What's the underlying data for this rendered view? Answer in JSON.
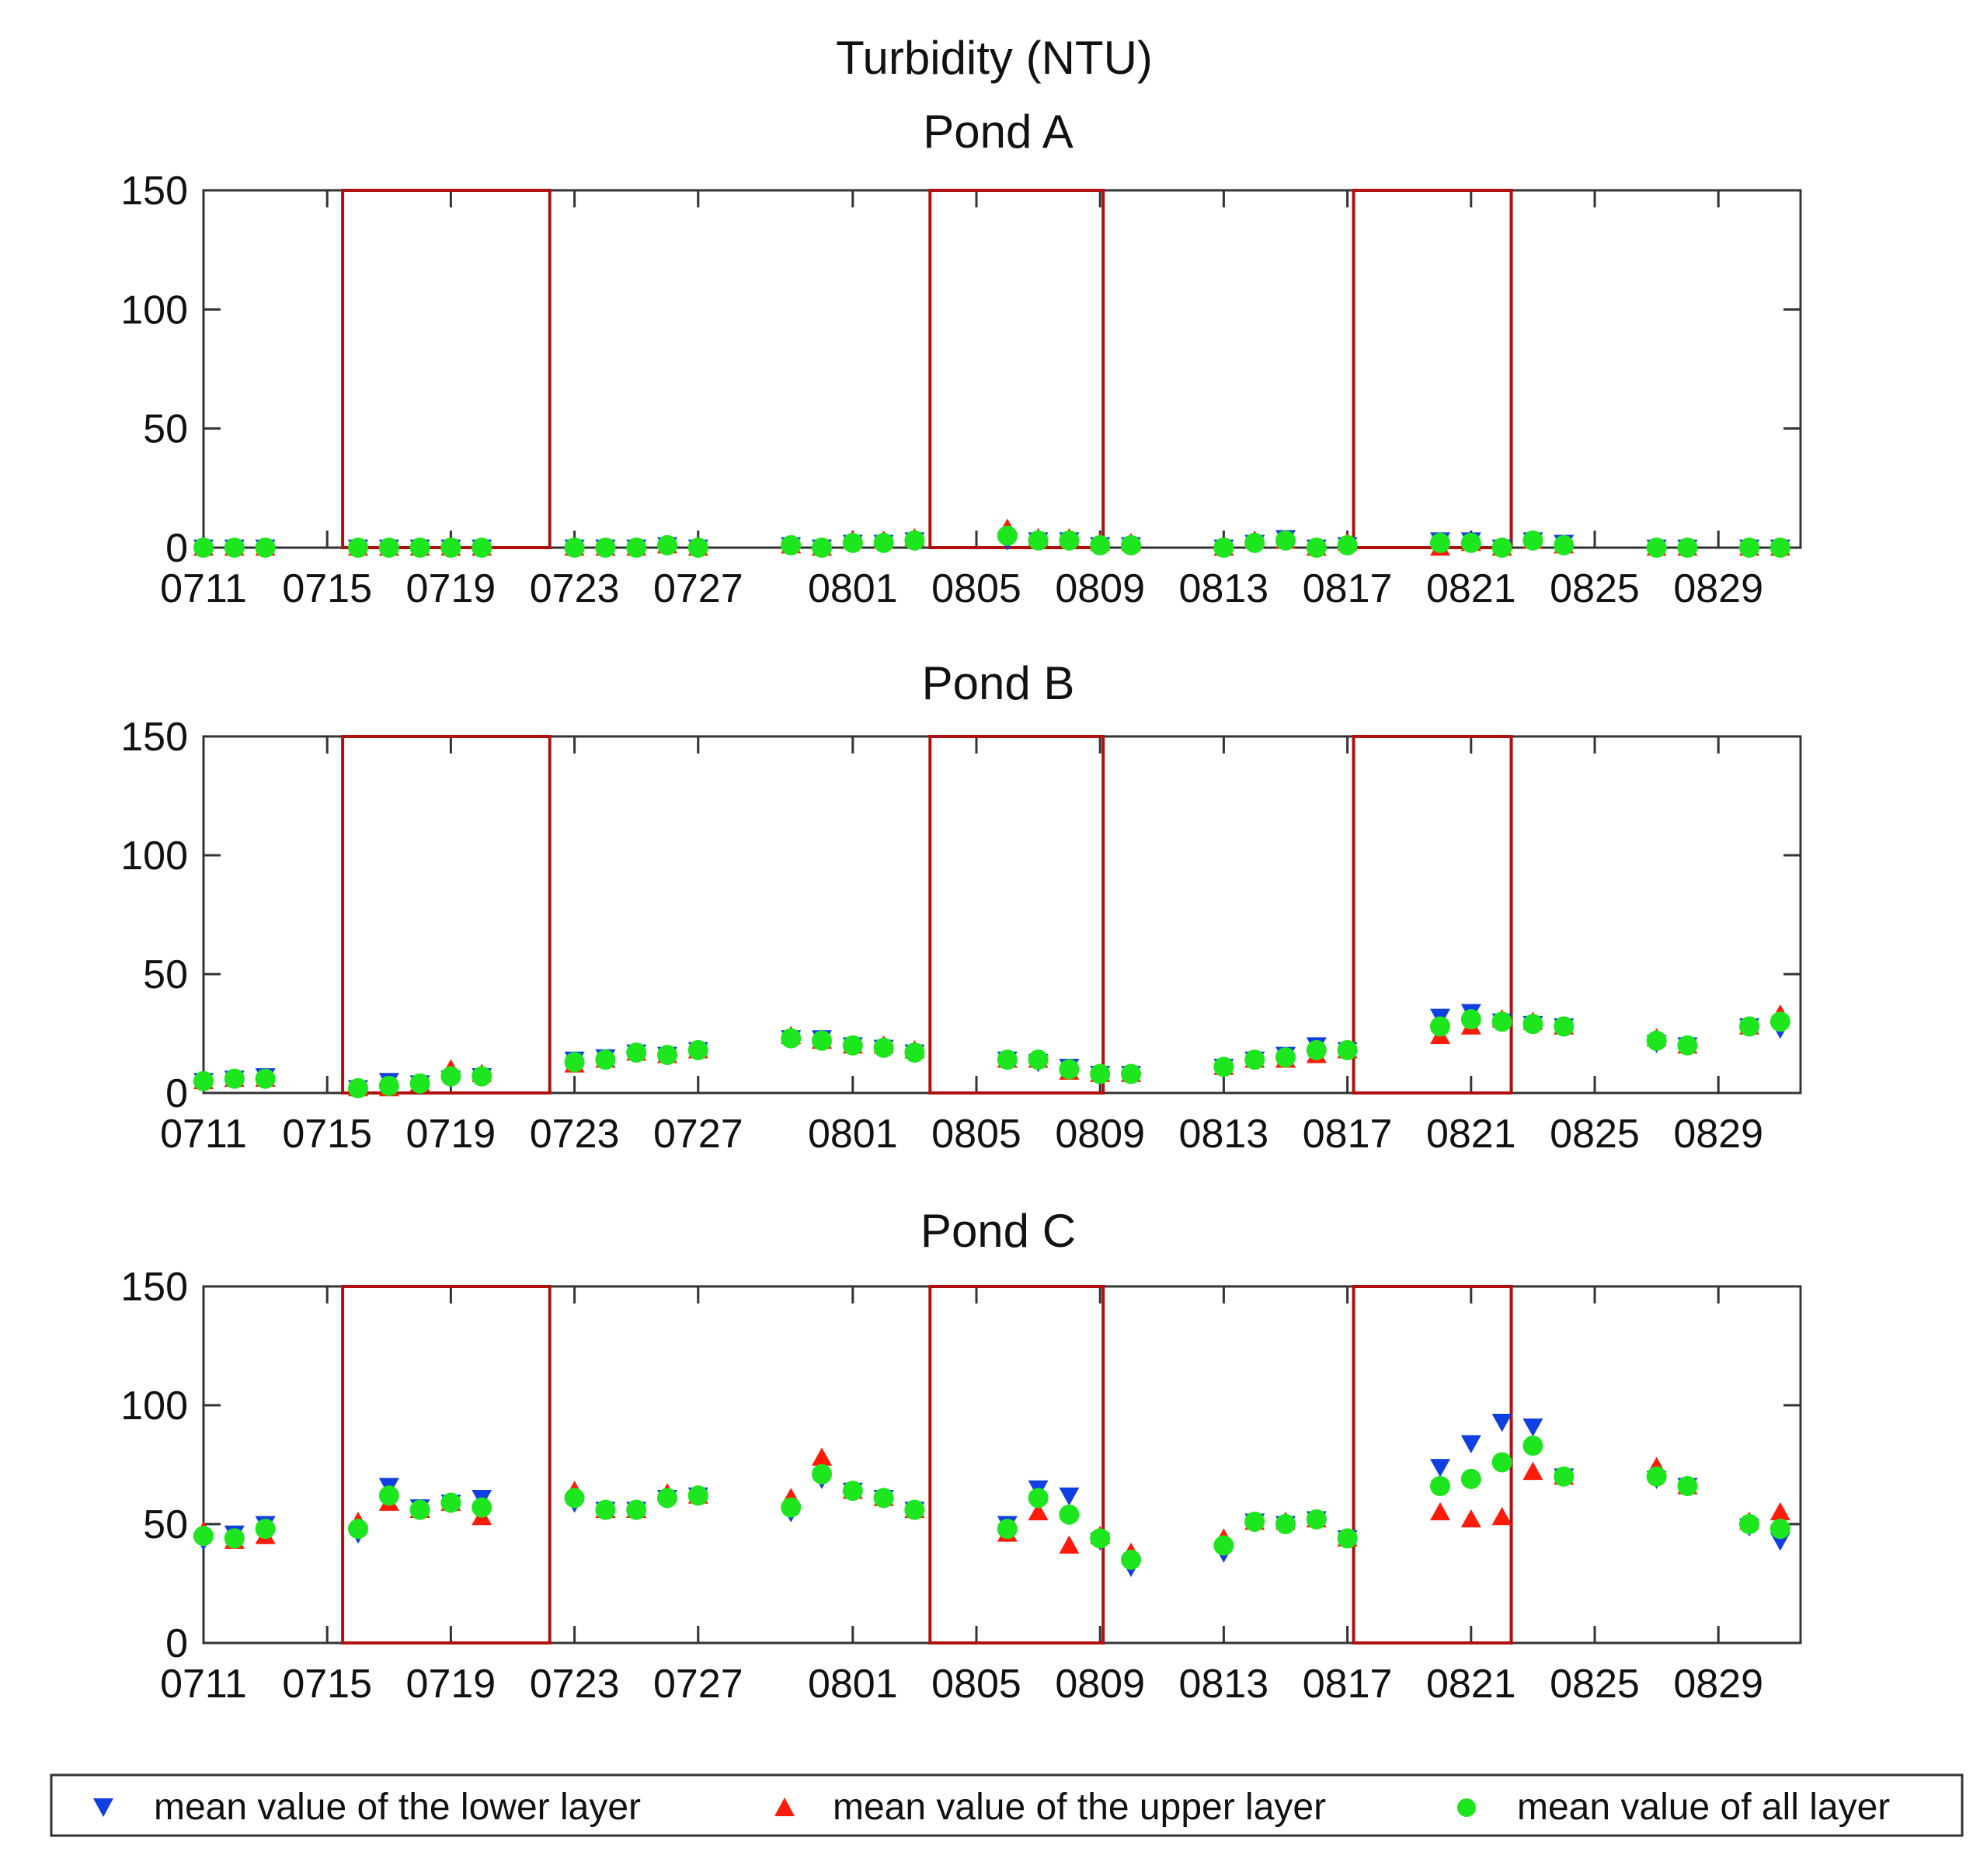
{
  "title": "Turbidity (NTU)",
  "legend": {
    "lower": {
      "label": "mean value of the lower layer",
      "color": "#1040e0"
    },
    "upper": {
      "label": "mean value of the upper layer",
      "color": "#ff1a0a"
    },
    "all": {
      "label": "mean value of all layer",
      "color": "#1ee61e"
    }
  },
  "highlight_color": "#b01010",
  "chart_data": [
    {
      "type": "scatter",
      "title": "Pond A",
      "xlabel": "",
      "ylabel": "",
      "ylim": [
        0,
        150
      ],
      "yticks": [
        0,
        50,
        100,
        150
      ],
      "xlim": [
        0,
        52
      ],
      "xticks": [
        {
          "day": 0,
          "label": "0711"
        },
        {
          "day": 4,
          "label": "0715"
        },
        {
          "day": 8,
          "label": "0719"
        },
        {
          "day": 12,
          "label": "0723"
        },
        {
          "day": 16,
          "label": "0727"
        },
        {
          "day": 21,
          "label": "0801"
        },
        {
          "day": 25,
          "label": "0805"
        },
        {
          "day": 29,
          "label": "0809"
        },
        {
          "day": 33,
          "label": "0813"
        },
        {
          "day": 37,
          "label": "0817"
        },
        {
          "day": 41,
          "label": "0821"
        },
        {
          "day": 45,
          "label": "0825"
        },
        {
          "day": 49,
          "label": "0829"
        }
      ],
      "highlight_ranges": [
        [
          4.5,
          11.2
        ],
        [
          23.5,
          29.1
        ],
        [
          37.2,
          42.3
        ]
      ],
      "x": [
        0,
        1,
        2,
        5,
        6,
        7,
        8,
        9,
        12,
        13,
        14,
        15,
        16,
        19,
        20,
        21,
        22,
        23,
        26,
        27,
        28,
        29,
        30,
        33,
        34,
        35,
        36,
        37,
        40,
        41,
        42,
        43,
        44,
        47,
        48,
        50,
        51
      ],
      "series": [
        {
          "name": "mean value of the lower layer",
          "values": [
            0,
            0,
            0,
            0,
            0,
            0,
            0,
            0,
            0,
            0,
            0,
            1,
            0,
            1,
            0,
            2,
            2,
            3,
            3,
            3,
            3,
            1,
            1,
            0,
            2,
            4,
            0,
            1,
            3,
            3,
            0,
            3,
            2,
            0,
            0,
            0,
            0
          ]
        },
        {
          "name": "mean value of the upper layer",
          "values": [
            0,
            0,
            0,
            0,
            0,
            0,
            0,
            0,
            0,
            0,
            0,
            1,
            0,
            1,
            0,
            3,
            3,
            4,
            8,
            4,
            4,
            2,
            2,
            0,
            3,
            3,
            0,
            2,
            0,
            2,
            0,
            3,
            1,
            0,
            0,
            0,
            0
          ]
        },
        {
          "name": "mean value of all layer",
          "values": [
            0,
            0,
            0,
            0,
            0,
            0,
            0,
            0,
            0,
            0,
            0,
            1,
            0,
            1,
            0,
            2,
            2,
            3,
            5,
            3,
            3,
            1,
            1,
            0,
            2,
            3,
            0,
            1,
            2,
            2,
            0,
            3,
            1,
            0,
            0,
            0,
            0
          ]
        }
      ]
    },
    {
      "type": "scatter",
      "title": "Pond B",
      "xlabel": "",
      "ylabel": "",
      "ylim": [
        0,
        150
      ],
      "yticks": [
        0,
        50,
        100,
        150
      ],
      "xlim": [
        0,
        52
      ],
      "xticks": [
        {
          "day": 0,
          "label": "0711"
        },
        {
          "day": 4,
          "label": "0715"
        },
        {
          "day": 8,
          "label": "0719"
        },
        {
          "day": 12,
          "label": "0723"
        },
        {
          "day": 16,
          "label": "0727"
        },
        {
          "day": 21,
          "label": "0801"
        },
        {
          "day": 25,
          "label": "0805"
        },
        {
          "day": 29,
          "label": "0809"
        },
        {
          "day": 33,
          "label": "0813"
        },
        {
          "day": 37,
          "label": "0817"
        },
        {
          "day": 41,
          "label": "0821"
        },
        {
          "day": 45,
          "label": "0825"
        },
        {
          "day": 49,
          "label": "0829"
        }
      ],
      "highlight_ranges": [
        [
          4.5,
          11.2
        ],
        [
          23.5,
          29.1
        ],
        [
          37.2,
          42.3
        ]
      ],
      "x": [
        0,
        1,
        2,
        5,
        6,
        7,
        8,
        9,
        12,
        13,
        14,
        15,
        16,
        19,
        20,
        21,
        22,
        23,
        26,
        27,
        28,
        29,
        30,
        33,
        34,
        35,
        36,
        37,
        40,
        41,
        42,
        43,
        44,
        47,
        48,
        50,
        51
      ],
      "series": [
        {
          "name": "mean value of the lower layer",
          "values": [
            5,
            6,
            7,
            2,
            5,
            4,
            6,
            7,
            14,
            15,
            17,
            16,
            18,
            23,
            23,
            20,
            19,
            17,
            14,
            13,
            11,
            8,
            8,
            11,
            14,
            16,
            20,
            18,
            32,
            34,
            30,
            29,
            28,
            21,
            20,
            28,
            27
          ]
        },
        {
          "name": "mean value of the upper layer",
          "values": [
            5,
            6,
            6,
            2,
            2,
            4,
            10,
            8,
            12,
            14,
            17,
            16,
            18,
            24,
            22,
            20,
            20,
            18,
            14,
            14,
            9,
            8,
            8,
            11,
            14,
            14,
            16,
            18,
            24,
            28,
            31,
            30,
            28,
            23,
            20,
            28,
            33
          ]
        },
        {
          "name": "mean value of all layer",
          "values": [
            5,
            6,
            6,
            2,
            3,
            4,
            7,
            7,
            13,
            14,
            17,
            16,
            18,
            23,
            22,
            20,
            19,
            17,
            14,
            14,
            10,
            8,
            8,
            11,
            14,
            15,
            18,
            18,
            28,
            31,
            30,
            29,
            28,
            22,
            20,
            28,
            30
          ]
        }
      ]
    },
    {
      "type": "scatter",
      "title": "Pond C",
      "xlabel": "",
      "ylabel": "",
      "ylim": [
        0,
        150
      ],
      "yticks": [
        0,
        50,
        100,
        150
      ],
      "xlim": [
        0,
        52
      ],
      "xticks": [
        {
          "day": 0,
          "label": "0711"
        },
        {
          "day": 4,
          "label": "0715"
        },
        {
          "day": 8,
          "label": "0719"
        },
        {
          "day": 12,
          "label": "0723"
        },
        {
          "day": 16,
          "label": "0727"
        },
        {
          "day": 21,
          "label": "0801"
        },
        {
          "day": 25,
          "label": "0805"
        },
        {
          "day": 29,
          "label": "0809"
        },
        {
          "day": 33,
          "label": "0813"
        },
        {
          "day": 37,
          "label": "0817"
        },
        {
          "day": 41,
          "label": "0821"
        },
        {
          "day": 45,
          "label": "0825"
        },
        {
          "day": 49,
          "label": "0829"
        }
      ],
      "highlight_ranges": [
        [
          4.5,
          11.2
        ],
        [
          23.5,
          29.1
        ],
        [
          37.2,
          42.3
        ]
      ],
      "x": [
        0,
        1,
        2,
        5,
        6,
        7,
        8,
        9,
        12,
        13,
        14,
        15,
        16,
        19,
        20,
        21,
        22,
        23,
        26,
        27,
        28,
        29,
        30,
        33,
        34,
        35,
        36,
        37,
        40,
        41,
        42,
        43,
        44,
        47,
        48,
        50,
        51
      ],
      "series": [
        {
          "name": "mean value of the lower layer",
          "values": [
            43,
            46,
            50,
            46,
            66,
            57,
            59,
            61,
            59,
            56,
            56,
            61,
            62,
            55,
            69,
            64,
            61,
            56,
            50,
            65,
            62,
            43,
            32,
            38,
            51,
            50,
            52,
            44,
            74,
            84,
            93,
            91,
            70,
            69,
            66,
            49,
            43
          ]
        },
        {
          "name": "mean value of the upper layer",
          "values": [
            47,
            43,
            45,
            51,
            59,
            56,
            59,
            53,
            64,
            56,
            56,
            63,
            62,
            61,
            78,
            64,
            61,
            56,
            46,
            55,
            41,
            45,
            38,
            44,
            51,
            51,
            52,
            44,
            55,
            52,
            53,
            72,
            70,
            74,
            66,
            51,
            55
          ]
        },
        {
          "name": "mean value of all layer",
          "values": [
            45,
            44,
            48,
            48,
            62,
            56,
            59,
            57,
            61,
            56,
            56,
            61,
            62,
            57,
            71,
            64,
            61,
            56,
            48,
            61,
            54,
            44,
            35,
            41,
            51,
            50,
            52,
            44,
            66,
            69,
            76,
            83,
            70,
            70,
            66,
            50,
            48
          ]
        }
      ]
    }
  ]
}
